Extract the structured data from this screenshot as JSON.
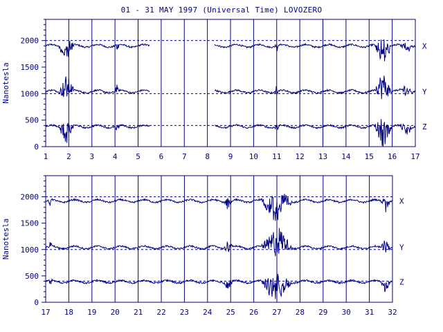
{
  "title": "01 - 31 MAY 1997 (Universal Time) LOVOZERO",
  "chart_data": [
    {
      "type": "line",
      "ylabel": "Nanotesla",
      "xlabel": "",
      "x_ticks": [
        "1",
        "2",
        "3",
        "4",
        "5",
        "6",
        "7",
        "8",
        "9",
        "10",
        "11",
        "12",
        "13",
        "14",
        "15",
        "16",
        "17"
      ],
      "xlim": [
        1,
        17
      ],
      "y_ticks": [
        "0",
        "500",
        "1000",
        "1500",
        "2000"
      ],
      "ylim": [
        0,
        2400
      ],
      "grid": "vertical lines at each day",
      "reference_levels": [
        2000,
        1000,
        400
      ],
      "series": [
        {
          "name": "X",
          "baseline": 1900,
          "gap": [
            5.5,
            8.3
          ]
        },
        {
          "name": "Y",
          "baseline": 1040,
          "gap": [
            5.5,
            8.3
          ]
        },
        {
          "name": "Z",
          "baseline": 380,
          "gap": [
            5.5,
            8.3
          ]
        }
      ]
    },
    {
      "type": "line",
      "ylabel": "Nanotesla",
      "xlabel": "",
      "x_ticks": [
        "17",
        "18",
        "19",
        "20",
        "21",
        "22",
        "23",
        "24",
        "25",
        "26",
        "27",
        "28",
        "29",
        "30",
        "31",
        "32"
      ],
      "xlim": [
        17,
        32
      ],
      "y_ticks": [
        "0",
        "500",
        "1000",
        "1500",
        "2000"
      ],
      "ylim": [
        0,
        2400
      ],
      "grid": "vertical lines at each day",
      "reference_levels": [
        2000,
        1000,
        400
      ],
      "series": [
        {
          "name": "X",
          "baseline": 1920,
          "gap": null
        },
        {
          "name": "Y",
          "baseline": 1040,
          "gap": null
        },
        {
          "name": "Z",
          "baseline": 390,
          "gap": null
        }
      ]
    }
  ]
}
